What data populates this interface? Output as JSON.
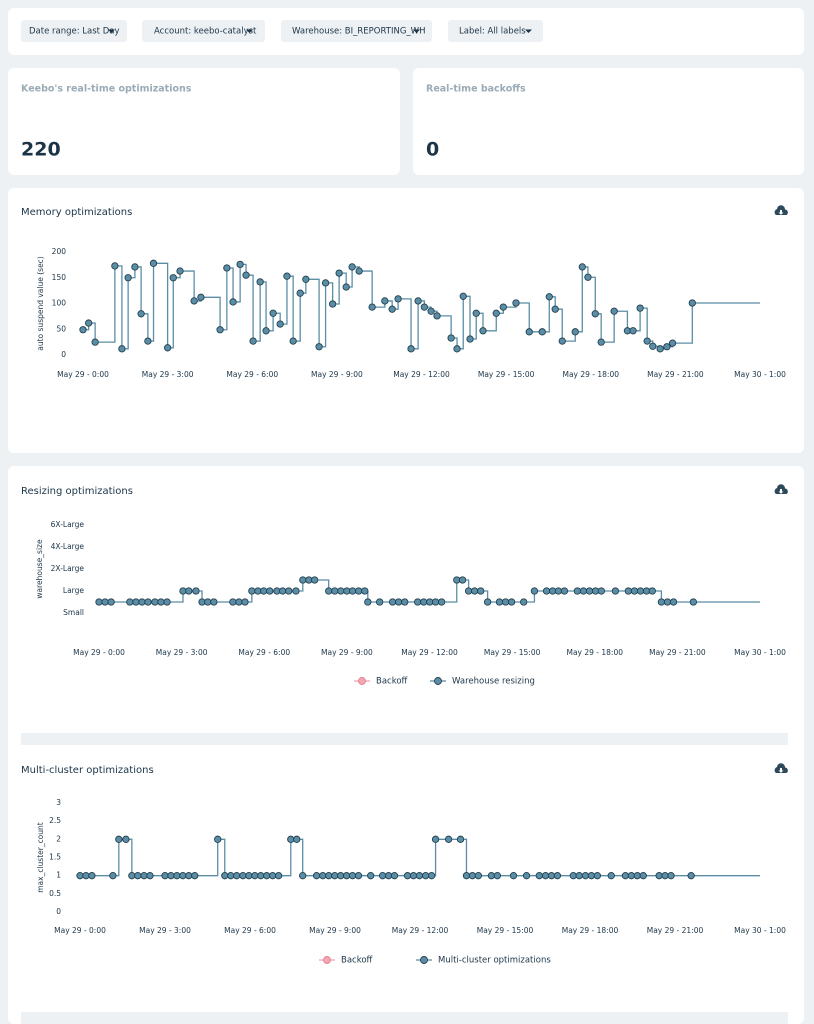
{
  "filters": [
    "Date range:  Last Day",
    "Account:  keebo-catalyst",
    "Warehouse:  BI_REPORTING_WH",
    "Label:  All labels"
  ],
  "stats": [
    {
      "label": "Keebo's real-time optimizations",
      "value": 220
    },
    {
      "label": "Real-time backoffs",
      "value": 0
    }
  ],
  "chart_data": [
    {
      "type": "line",
      "title": "Memory optimizations",
      "ylabel": "auto suspend value (sec)",
      "step": "hv",
      "xlim": [
        0,
        24
      ],
      "ylim": [
        0,
        200
      ],
      "yticks": [
        0,
        50,
        100,
        150,
        200
      ],
      "xticks": [
        {
          "value": 0,
          "label": "May 29 - 0:00"
        },
        {
          "value": 3,
          "label": "May 29 - 3:00"
        },
        {
          "value": 6,
          "label": "May 29 - 6:00"
        },
        {
          "value": 9,
          "label": "May 29 - 9:00"
        },
        {
          "value": 12,
          "label": "May 29 - 12:00"
        },
        {
          "value": 15,
          "label": "May 29 - 15:00"
        },
        {
          "value": 18,
          "label": "May 29 - 18:00"
        },
        {
          "value": 21,
          "label": "May 29 - 21:00"
        },
        {
          "value": 24,
          "label": "May 30 - 1:00"
        }
      ],
      "series": [
        {
          "color": "#5b8ea6",
          "x": [
            0,
            0.2,
            0.43,
            1.13,
            1.38,
            1.6,
            1.84,
            2.06,
            2.3,
            2.5,
            3.0,
            3.2,
            3.44,
            3.94,
            4.18,
            4.86,
            5.1,
            5.32,
            5.57,
            5.78,
            6.03,
            6.28,
            6.49,
            6.74,
            6.99,
            7.23,
            7.45,
            7.7,
            7.9,
            8.37,
            8.6,
            8.85,
            9.08,
            9.33,
            9.54,
            9.79,
            10.25,
            10.7,
            10.96,
            11.17,
            11.63,
            11.88,
            12.1,
            12.34,
            12.55,
            13.05,
            13.26,
            13.48,
            13.72,
            13.94,
            14.18,
            14.65,
            14.9,
            15.35,
            15.82,
            16.28,
            16.53,
            16.74,
            16.99,
            17.45,
            17.7,
            17.9,
            18.16,
            18.37,
            18.83,
            19.3,
            19.5,
            19.75,
            20,
            20.2,
            20.46,
            20.7,
            20.9,
            21.6
          ],
          "values": [
            49,
            62,
            25,
            173,
            12,
            150,
            171,
            80,
            27,
            178,
            14,
            150,
            163,
            105,
            112,
            49,
            169,
            103,
            176,
            155,
            27,
            142,
            47,
            81,
            60,
            153,
            27,
            120,
            147,
            16,
            140,
            99,
            159,
            132,
            171,
            163,
            93,
            105,
            89,
            109,
            12,
            105,
            93,
            85,
            76,
            33,
            12,
            114,
            31,
            81,
            47,
            81,
            93,
            101,
            45,
            45,
            113,
            89,
            27,
            45,
            171,
            151,
            80,
            25,
            85,
            47,
            47,
            91,
            27,
            17,
            12,
            16,
            23,
            101
          ]
        }
      ]
    },
    {
      "type": "line",
      "title": "Resizing optimizations",
      "ylabel": "warehouse_size",
      "step": "hv",
      "legend": "bottom",
      "xlim": [
        0,
        24
      ],
      "ylim": [
        0,
        10
      ],
      "yticks": [
        {
          "value": 1,
          "label": "Small"
        },
        {
          "value": 3,
          "label": "Large"
        },
        {
          "value": 5,
          "label": "2X-Large"
        },
        {
          "value": 7,
          "label": "4X-Large"
        },
        {
          "value": 9,
          "label": "6X-Large"
        }
      ],
      "xticks": [
        {
          "value": 0,
          "label": "May 29 - 0:00"
        },
        {
          "value": 3,
          "label": "May 29 - 3:00"
        },
        {
          "value": 6,
          "label": "May 29 - 6:00"
        },
        {
          "value": 9,
          "label": "May 29 - 9:00"
        },
        {
          "value": 12,
          "label": "May 29 - 12:00"
        },
        {
          "value": 15,
          "label": "May 29 - 15:00"
        },
        {
          "value": 18,
          "label": "May 29 - 18:00"
        },
        {
          "value": 21,
          "label": "May 29 - 21:00"
        },
        {
          "value": 24,
          "label": "May 30 - 1:00"
        }
      ],
      "series": [
        {
          "name": "Backoff",
          "color": "#f2a7b3",
          "x": [],
          "values": []
        },
        {
          "name": "Warehouse resizing",
          "color": "#5b8ea6",
          "x": [
            0,
            0.22,
            0.44,
            1.12,
            1.34,
            1.56,
            1.78,
            2.03,
            2.25,
            2.47,
            3.05,
            3.26,
            3.52,
            3.74,
            3.95,
            4.17,
            4.86,
            5.08,
            5.3,
            5.55,
            5.77,
            5.98,
            6.2,
            6.46,
            6.67,
            6.89,
            7.15,
            7.4,
            7.62,
            7.83,
            8.34,
            8.56,
            8.78,
            9.0,
            9.21,
            9.43,
            9.65,
            9.76,
            10.19,
            10.66,
            10.88,
            11.1,
            11.57,
            11.79,
            12.01,
            12.22,
            12.44,
            12.99,
            13.2,
            13.42,
            13.64,
            13.86,
            14.11,
            14.54,
            14.76,
            14.98,
            15.42,
            15.81,
            16.25,
            16.47,
            16.68,
            16.9,
            17.37,
            17.59,
            17.81,
            18.03,
            18.24,
            18.75,
            19.22,
            19.44,
            19.66,
            19.88,
            20.09,
            20.42,
            20.64,
            20.86,
            21.58
          ],
          "values": [
            2,
            2,
            2,
            2,
            2,
            2,
            2,
            2,
            2,
            2,
            3,
            3,
            3,
            2,
            2,
            2,
            2,
            2,
            2,
            3,
            3,
            3,
            3,
            3,
            3,
            3,
            3,
            4,
            4,
            4,
            3,
            3,
            3,
            3,
            3,
            3,
            3,
            2,
            2,
            2,
            2,
            2,
            2,
            2,
            2,
            2,
            2,
            4,
            4,
            3,
            3,
            3,
            2,
            2,
            2,
            2,
            2,
            3,
            3,
            3,
            3,
            3,
            3,
            3,
            3,
            3,
            3,
            3,
            3,
            3,
            3,
            3,
            3,
            2,
            2,
            2,
            2
          ]
        }
      ]
    },
    {
      "type": "line",
      "title": "Multi-cluster optimizations",
      "ylabel": "max_cluster_count",
      "step": "hv",
      "legend": "bottom",
      "xlim": [
        0,
        24
      ],
      "ylim": [
        0,
        3
      ],
      "yticks": [
        0,
        0.5,
        1,
        1.5,
        2,
        2.5,
        3
      ],
      "xticks": [
        {
          "value": 0,
          "label": "May 29 - 0:00"
        },
        {
          "value": 3,
          "label": "May 29 - 3:00"
        },
        {
          "value": 6,
          "label": "May 29 - 6:00"
        },
        {
          "value": 9,
          "label": "May 29 - 9:00"
        },
        {
          "value": 12,
          "label": "May 29 - 12:00"
        },
        {
          "value": 15,
          "label": "May 29 - 15:00"
        },
        {
          "value": 18,
          "label": "May 29 - 18:00"
        },
        {
          "value": 21,
          "label": "May 29 - 21:00"
        },
        {
          "value": 24,
          "label": "May 30 - 1:00"
        }
      ],
      "series": [
        {
          "name": "Backoff",
          "color": "#f2a7b3",
          "x": [],
          "values": []
        },
        {
          "name": "Multi-cluster optimizations",
          "color": "#5b8ea6",
          "x": [
            0,
            0.21,
            0.42,
            1.16,
            1.37,
            1.62,
            1.83,
            2.04,
            2.26,
            2.47,
            3.0,
            3.21,
            3.42,
            3.63,
            3.84,
            4.05,
            4.86,
            5.11,
            5.32,
            5.53,
            5.75,
            5.96,
            6.17,
            6.38,
            6.59,
            6.8,
            7.01,
            7.44,
            7.65,
            7.86,
            8.35,
            8.57,
            8.78,
            8.99,
            9.2,
            9.41,
            9.62,
            9.83,
            10.26,
            10.68,
            10.89,
            11.1,
            11.56,
            11.77,
            11.98,
            12.2,
            12.41,
            12.55,
            13.01,
            13.43,
            13.64,
            13.85,
            14.06,
            14.52,
            14.73,
            15.3,
            15.76,
            16.21,
            16.43,
            16.64,
            16.85,
            17.41,
            17.62,
            17.84,
            18.05,
            18.26,
            18.75,
            19.25,
            19.46,
            19.67,
            19.88,
            20.44,
            20.65,
            20.86,
            21.57
          ],
          "values": [
            1,
            1,
            1,
            1,
            2,
            2,
            1,
            1,
            1,
            1,
            1,
            1,
            1,
            1,
            1,
            1,
            2,
            1,
            1,
            1,
            1,
            1,
            1,
            1,
            1,
            1,
            1,
            2,
            2,
            1,
            1,
            1,
            1,
            1,
            1,
            1,
            1,
            1,
            1,
            1,
            1,
            1,
            1,
            1,
            1,
            1,
            1,
            2,
            2,
            2,
            1,
            1,
            1,
            1,
            1,
            1,
            1,
            1,
            1,
            1,
            1,
            1,
            1,
            1,
            1,
            1,
            1,
            1,
            1,
            1,
            1,
            1,
            1,
            1,
            1
          ]
        }
      ]
    }
  ]
}
